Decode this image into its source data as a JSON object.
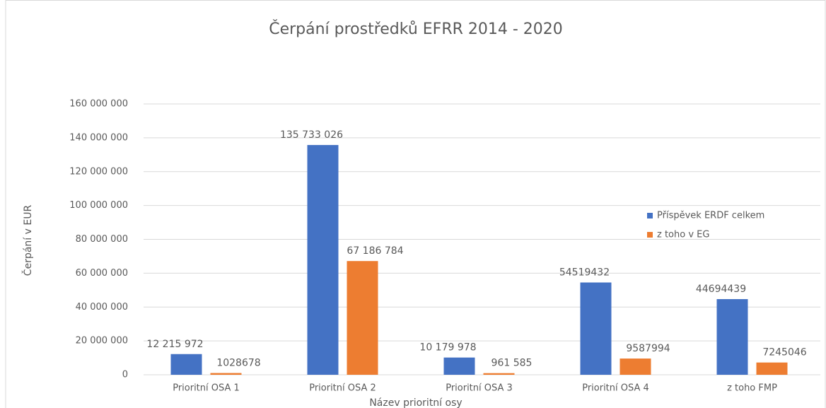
{
  "chart_data": {
    "type": "bar",
    "title": "Čerpání prostředků EFRR 2014 - 2020",
    "xlabel": "Název prioritní osy",
    "ylabel": "Čerpání v EUR",
    "categories": [
      "Prioritní OSA 1",
      "Prioritní OSA 2",
      "Prioritní OSA 3",
      "Prioritní OSA 4",
      "z toho FMP"
    ],
    "series": [
      {
        "name": "Příspěvek ERDF celkem",
        "color": "#4472c4",
        "values": [
          12215972,
          135733026,
          10179978,
          54519432,
          44694439
        ],
        "value_labels": [
          "12 215 972",
          "135 733 026",
          "10 179 978",
          "54519432",
          "44694439"
        ]
      },
      {
        "name": "z toho v EG",
        "color": "#ed7d31",
        "values": [
          1028678,
          67186784,
          961585,
          9587994,
          7245046
        ],
        "value_labels": [
          "1028678",
          "67 186 784",
          "961 585",
          "9587994",
          "7245046"
        ]
      }
    ],
    "ylim": [
      0,
      160000000
    ],
    "yticks": [
      0,
      {
        "value": 20000000,
        "label": "20 000 000"
      },
      {
        "value": 40000000,
        "label": "40 000 000"
      },
      {
        "value": 60000000,
        "label": "60 000 000"
      },
      {
        "value": 80000000,
        "label": "80 000 000"
      },
      {
        "value": 100000000,
        "label": "100 000 000"
      },
      {
        "value": 120000000,
        "label": "120 000 000"
      },
      {
        "value": 140000000,
        "label": "140 000 000"
      },
      {
        "value": 160000000,
        "label": "160 000 000"
      }
    ],
    "grid": true,
    "legend": "right"
  }
}
